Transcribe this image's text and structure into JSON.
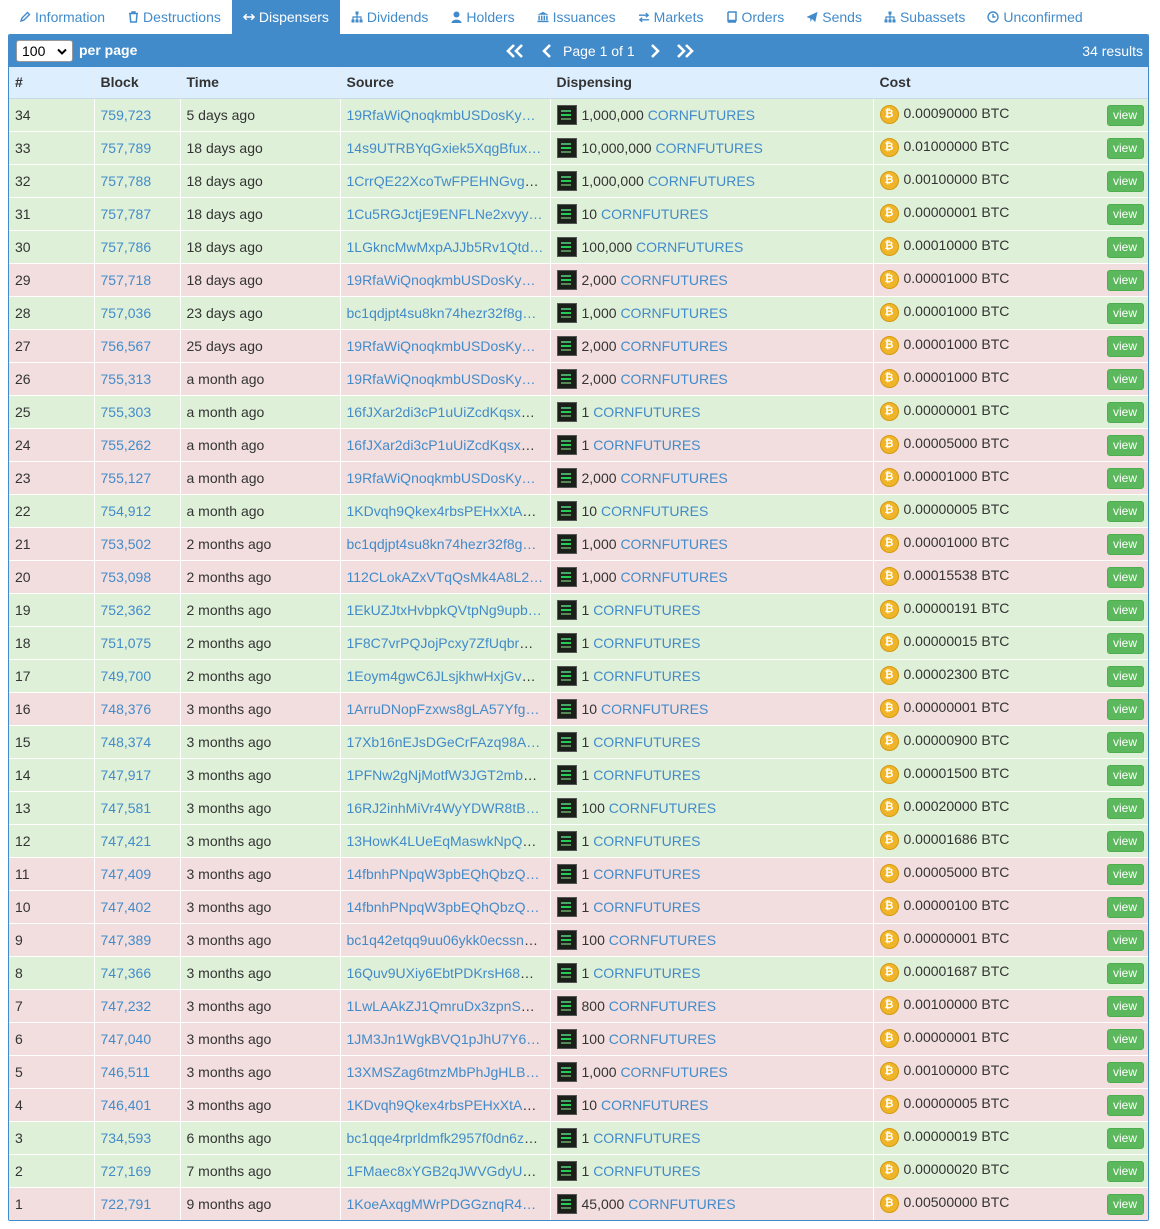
{
  "tabs": [
    {
      "label": "Information",
      "icon": "pencil-icon",
      "active": false
    },
    {
      "label": "Destructions",
      "icon": "trash-icon",
      "active": false
    },
    {
      "label": "Dispensers",
      "icon": "arrows-horizontal-icon",
      "active": true
    },
    {
      "label": "Dividends",
      "icon": "sitemap-icon",
      "active": false
    },
    {
      "label": "Holders",
      "icon": "user-icon",
      "active": false
    },
    {
      "label": "Issuances",
      "icon": "bank-icon",
      "active": false
    },
    {
      "label": "Markets",
      "icon": "exchange-icon",
      "active": false
    },
    {
      "label": "Orders",
      "icon": "book-icon",
      "active": false
    },
    {
      "label": "Sends",
      "icon": "paper-plane-icon",
      "active": false
    },
    {
      "label": "Subassets",
      "icon": "sitemap-icon",
      "active": false
    },
    {
      "label": "Unconfirmed",
      "icon": "clock-icon",
      "active": false
    }
  ],
  "toolbar": {
    "per_page_value": "100",
    "per_page_label": "per page",
    "page_info": "Page 1 of 1",
    "results": "34 results"
  },
  "columns": [
    "#",
    "Block",
    "Time",
    "Source",
    "Dispensing",
    "Cost"
  ],
  "view_label": "view",
  "colors": {
    "accent": "#428bca",
    "row_green": "#dff0d8",
    "row_red": "#f2dede",
    "view_button": "#5cb85c",
    "coin": "#f0b429"
  },
  "rows": [
    {
      "n": "34",
      "block": "759,723",
      "time": "5 days ago",
      "source": "19RfaWiQnoqkmbUSDosKy…",
      "qty": "1,000,000",
      "asset": "CORNFUTURES",
      "cost": "0.00090000 BTC",
      "status": "green"
    },
    {
      "n": "33",
      "block": "757,789",
      "time": "18 days ago",
      "source": "14s9UTRBYqGxiek5XqgBfux…",
      "qty": "10,000,000",
      "asset": "CORNFUTURES",
      "cost": "0.01000000 BTC",
      "status": "green"
    },
    {
      "n": "32",
      "block": "757,788",
      "time": "18 days ago",
      "source": "1CrrQE22XcoTwFPEHNGvgq…",
      "qty": "1,000,000",
      "asset": "CORNFUTURES",
      "cost": "0.00100000 BTC",
      "status": "green"
    },
    {
      "n": "31",
      "block": "757,787",
      "time": "18 days ago",
      "source": "1Cu5RGJctjE9ENFLNe2xvyy…",
      "qty": "10",
      "asset": "CORNFUTURES",
      "cost": "0.00000001 BTC",
      "status": "green"
    },
    {
      "n": "30",
      "block": "757,786",
      "time": "18 days ago",
      "source": "1LGkncMwMxpAJJb5Rv1Qtd…",
      "qty": "100,000",
      "asset": "CORNFUTURES",
      "cost": "0.00010000 BTC",
      "status": "green"
    },
    {
      "n": "29",
      "block": "757,718",
      "time": "18 days ago",
      "source": "19RfaWiQnoqkmbUSDosKy…",
      "qty": "2,000",
      "asset": "CORNFUTURES",
      "cost": "0.00001000 BTC",
      "status": "red"
    },
    {
      "n": "28",
      "block": "757,036",
      "time": "23 days ago",
      "source": "bc1qdjpt4su8kn74hezr32f8g…",
      "qty": "1,000",
      "asset": "CORNFUTURES",
      "cost": "0.00001000 BTC",
      "status": "green"
    },
    {
      "n": "27",
      "block": "756,567",
      "time": "25 days ago",
      "source": "19RfaWiQnoqkmbUSDosKy…",
      "qty": "2,000",
      "asset": "CORNFUTURES",
      "cost": "0.00001000 BTC",
      "status": "red"
    },
    {
      "n": "26",
      "block": "755,313",
      "time": "a month ago",
      "source": "19RfaWiQnoqkmbUSDosKy…",
      "qty": "2,000",
      "asset": "CORNFUTURES",
      "cost": "0.00001000 BTC",
      "status": "red"
    },
    {
      "n": "25",
      "block": "755,303",
      "time": "a month ago",
      "source": "16fJXar2di3cP1uUiZcdKqsxH…",
      "qty": "1",
      "asset": "CORNFUTURES",
      "cost": "0.00000001 BTC",
      "status": "green"
    },
    {
      "n": "24",
      "block": "755,262",
      "time": "a month ago",
      "source": "16fJXar2di3cP1uUiZcdKqsxH…",
      "qty": "1",
      "asset": "CORNFUTURES",
      "cost": "0.00005000 BTC",
      "status": "red"
    },
    {
      "n": "23",
      "block": "755,127",
      "time": "a month ago",
      "source": "19RfaWiQnoqkmbUSDosKy…",
      "qty": "2,000",
      "asset": "CORNFUTURES",
      "cost": "0.00001000 BTC",
      "status": "red"
    },
    {
      "n": "22",
      "block": "754,912",
      "time": "a month ago",
      "source": "1KDvqh9Qkex4rbsPEHxXtAn…",
      "qty": "10",
      "asset": "CORNFUTURES",
      "cost": "0.00000005 BTC",
      "status": "green"
    },
    {
      "n": "21",
      "block": "753,502",
      "time": "2 months ago",
      "source": "bc1qdjpt4su8kn74hezr32f8g…",
      "qty": "1,000",
      "asset": "CORNFUTURES",
      "cost": "0.00001000 BTC",
      "status": "red"
    },
    {
      "n": "20",
      "block": "753,098",
      "time": "2 months ago",
      "source": "112CLokAZxVTqQsMk4A8L2…",
      "qty": "1,000",
      "asset": "CORNFUTURES",
      "cost": "0.00015538 BTC",
      "status": "red"
    },
    {
      "n": "19",
      "block": "752,362",
      "time": "2 months ago",
      "source": "1EkUZJtxHvbpkQVtpNg9upb…",
      "qty": "1",
      "asset": "CORNFUTURES",
      "cost": "0.00000191 BTC",
      "status": "green"
    },
    {
      "n": "18",
      "block": "751,075",
      "time": "2 months ago",
      "source": "1F8C7vrPQJojPcxy7ZfUqbrG…",
      "qty": "1",
      "asset": "CORNFUTURES",
      "cost": "0.00000015 BTC",
      "status": "green"
    },
    {
      "n": "17",
      "block": "749,700",
      "time": "2 months ago",
      "source": "1Eoym4gwC6JLsjkhwHxjGvQ…",
      "qty": "1",
      "asset": "CORNFUTURES",
      "cost": "0.00002300 BTC",
      "status": "green"
    },
    {
      "n": "16",
      "block": "748,376",
      "time": "3 months ago",
      "source": "1ArruDNopFzxws8gLA57Yfg…",
      "qty": "10",
      "asset": "CORNFUTURES",
      "cost": "0.00000001 BTC",
      "status": "red"
    },
    {
      "n": "15",
      "block": "748,374",
      "time": "3 months ago",
      "source": "17Xb16nEJsDGeCrFAzq98A…",
      "qty": "1",
      "asset": "CORNFUTURES",
      "cost": "0.00000900 BTC",
      "status": "green"
    },
    {
      "n": "14",
      "block": "747,917",
      "time": "3 months ago",
      "source": "1PFNw2gNjMotfW3JGT2mba…",
      "qty": "1",
      "asset": "CORNFUTURES",
      "cost": "0.00001500 BTC",
      "status": "green"
    },
    {
      "n": "13",
      "block": "747,581",
      "time": "3 months ago",
      "source": "16RJ2inhMiVr4WyYDWR8tB…",
      "qty": "100",
      "asset": "CORNFUTURES",
      "cost": "0.00020000 BTC",
      "status": "green"
    },
    {
      "n": "12",
      "block": "747,421",
      "time": "3 months ago",
      "source": "13HowK4LUeEqMaswkNpQ5…",
      "qty": "1",
      "asset": "CORNFUTURES",
      "cost": "0.00001686 BTC",
      "status": "green"
    },
    {
      "n": "11",
      "block": "747,409",
      "time": "3 months ago",
      "source": "14fbnhPNpqW3pbEQhQbzQ…",
      "qty": "1",
      "asset": "CORNFUTURES",
      "cost": "0.00005000 BTC",
      "status": "red"
    },
    {
      "n": "10",
      "block": "747,402",
      "time": "3 months ago",
      "source": "14fbnhPNpqW3pbEQhQbzQ…",
      "qty": "1",
      "asset": "CORNFUTURES",
      "cost": "0.00000100 BTC",
      "status": "red"
    },
    {
      "n": "9",
      "block": "747,389",
      "time": "3 months ago",
      "source": "bc1q42etqq9uu06ykk0ecssne…",
      "qty": "100",
      "asset": "CORNFUTURES",
      "cost": "0.00000001 BTC",
      "status": "red"
    },
    {
      "n": "8",
      "block": "747,366",
      "time": "3 months ago",
      "source": "16Quv9UXiy6EbtPDKrsH68Q…",
      "qty": "1",
      "asset": "CORNFUTURES",
      "cost": "0.00001687 BTC",
      "status": "green"
    },
    {
      "n": "7",
      "block": "747,232",
      "time": "3 months ago",
      "source": "1LwLAAkZJ1QmruDx3zpnSQ…",
      "qty": "800",
      "asset": "CORNFUTURES",
      "cost": "0.00100000 BTC",
      "status": "red"
    },
    {
      "n": "6",
      "block": "747,040",
      "time": "3 months ago",
      "source": "1JM3Jn1WgkBVQ1pJhU7Y6…",
      "qty": "100",
      "asset": "CORNFUTURES",
      "cost": "0.00000001 BTC",
      "status": "red"
    },
    {
      "n": "5",
      "block": "746,511",
      "time": "3 months ago",
      "source": "13XMSZag6tmzMbPhJgHLB…",
      "qty": "1,000",
      "asset": "CORNFUTURES",
      "cost": "0.00100000 BTC",
      "status": "red"
    },
    {
      "n": "4",
      "block": "746,401",
      "time": "3 months ago",
      "source": "1KDvqh9Qkex4rbsPEHxXtAn…",
      "qty": "10",
      "asset": "CORNFUTURES",
      "cost": "0.00000005 BTC",
      "status": "red"
    },
    {
      "n": "3",
      "block": "734,593",
      "time": "6 months ago",
      "source": "bc1qqe4rprldmfk2957f0dn6zc…",
      "qty": "1",
      "asset": "CORNFUTURES",
      "cost": "0.00000019 BTC",
      "status": "green"
    },
    {
      "n": "2",
      "block": "727,169",
      "time": "7 months ago",
      "source": "1FMaec8xYGB2qJWVGdyUE…",
      "qty": "1",
      "asset": "CORNFUTURES",
      "cost": "0.00000020 BTC",
      "status": "green"
    },
    {
      "n": "1",
      "block": "722,791",
      "time": "9 months ago",
      "source": "1KoeAxqgMWrPDGGznqR4…",
      "qty": "45,000",
      "asset": "CORNFUTURES",
      "cost": "0.00500000 BTC",
      "status": "red"
    }
  ]
}
